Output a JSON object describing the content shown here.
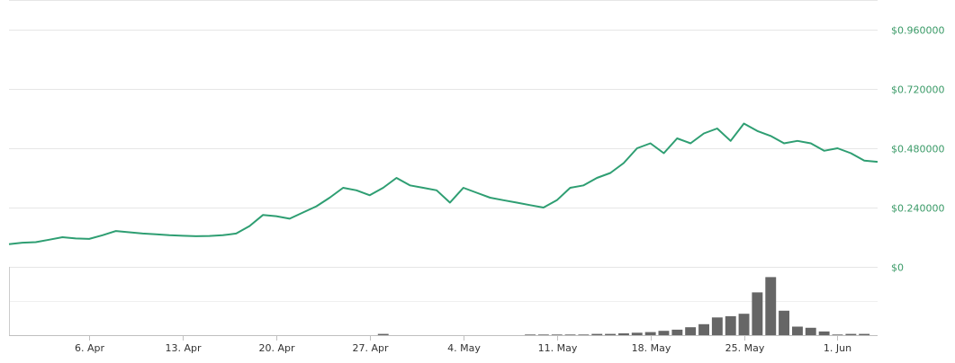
{
  "colors": {
    "price_line": "#2e9e72",
    "volume_bar": "#666666",
    "grid": "#e6e6e6",
    "axis_label": "#3a9a67",
    "date_label": "#333333"
  },
  "chart_data": [
    {
      "type": "line",
      "title": "",
      "xlabel": "",
      "ylabel": "",
      "xlim": [
        "2020-03-31",
        "2020-06-04"
      ],
      "ylim": [
        0,
        1.08
      ],
      "yticks": [
        {
          "value": 0,
          "label": "$0"
        },
        {
          "value": 0.24,
          "label": "$0.240000"
        },
        {
          "value": 0.48,
          "label": "$0.480000"
        },
        {
          "value": 0.72,
          "label": "$0.720000"
        },
        {
          "value": 0.96,
          "label": "$0.960000"
        }
      ],
      "xticks": [
        {
          "value": "2020-04-06",
          "label": "6. Apr"
        },
        {
          "value": "2020-04-13",
          "label": "13. Apr"
        },
        {
          "value": "2020-04-20",
          "label": "20. Apr"
        },
        {
          "value": "2020-04-27",
          "label": "27. Apr"
        },
        {
          "value": "2020-05-04",
          "label": "4. May"
        },
        {
          "value": "2020-05-11",
          "label": "11. May"
        },
        {
          "value": "2020-05-18",
          "label": "18. May"
        },
        {
          "value": "2020-05-25",
          "label": "25. May"
        },
        {
          "value": "2020-06-01",
          "label": "1. Jun"
        }
      ],
      "grid": true,
      "series": [
        {
          "x": [
            "2020-03-31",
            "2020-04-01",
            "2020-04-02",
            "2020-04-03",
            "2020-04-04",
            "2020-04-05",
            "2020-04-06",
            "2020-04-07",
            "2020-04-08",
            "2020-04-09",
            "2020-04-10",
            "2020-04-11",
            "2020-04-12",
            "2020-04-13",
            "2020-04-14",
            "2020-04-15",
            "2020-04-16",
            "2020-04-17",
            "2020-04-18",
            "2020-04-19",
            "2020-04-20",
            "2020-04-21",
            "2020-04-22",
            "2020-04-23",
            "2020-04-24",
            "2020-04-25",
            "2020-04-26",
            "2020-04-27",
            "2020-04-28",
            "2020-04-29",
            "2020-04-30",
            "2020-05-01",
            "2020-05-02",
            "2020-05-03",
            "2020-05-04",
            "2020-05-05",
            "2020-05-06",
            "2020-05-07",
            "2020-05-08",
            "2020-05-09",
            "2020-05-10",
            "2020-05-11",
            "2020-05-12",
            "2020-05-13",
            "2020-05-14",
            "2020-05-15",
            "2020-05-16",
            "2020-05-17",
            "2020-05-18",
            "2020-05-19",
            "2020-05-20",
            "2020-05-21",
            "2020-05-22",
            "2020-05-23",
            "2020-05-24",
            "2020-05-25",
            "2020-05-26",
            "2020-05-27",
            "2020-05-28",
            "2020-05-29",
            "2020-05-30",
            "2020-05-31",
            "2020-06-01",
            "2020-06-02",
            "2020-06-03",
            "2020-06-04"
          ],
          "y": [
            0.092,
            0.098,
            0.1,
            0.11,
            0.12,
            0.115,
            0.113,
            0.128,
            0.145,
            0.14,
            0.135,
            0.132,
            0.128,
            0.126,
            0.124,
            0.125,
            0.128,
            0.135,
            0.165,
            0.21,
            0.205,
            0.195,
            0.22,
            0.245,
            0.28,
            0.32,
            0.31,
            0.29,
            0.32,
            0.36,
            0.33,
            0.32,
            0.31,
            0.26,
            0.32,
            0.3,
            0.28,
            0.27,
            0.26,
            0.25,
            0.24,
            0.27,
            0.32,
            0.33,
            0.36,
            0.38,
            0.42,
            0.48,
            0.5,
            0.46,
            0.52,
            0.5,
            0.54,
            0.56,
            0.51,
            0.58,
            0.55,
            0.53,
            0.5,
            0.51,
            0.5,
            0.47,
            0.48,
            0.46,
            0.43,
            0.425
          ]
        }
      ]
    },
    {
      "type": "bar",
      "title": "",
      "xlabel": "",
      "ylabel": "",
      "ylim": [
        0,
        1
      ],
      "note_units": "relative volume (0-1)",
      "x": [
        "2020-04-28",
        "2020-05-09",
        "2020-05-10",
        "2020-05-11",
        "2020-05-12",
        "2020-05-13",
        "2020-05-14",
        "2020-05-15",
        "2020-05-16",
        "2020-05-17",
        "2020-05-18",
        "2020-05-19",
        "2020-05-20",
        "2020-05-21",
        "2020-05-22",
        "2020-05-23",
        "2020-05-24",
        "2020-05-25",
        "2020-05-26",
        "2020-05-27",
        "2020-05-28",
        "2020-05-29",
        "2020-05-30",
        "2020-05-31",
        "2020-06-01",
        "2020-06-02",
        "2020-06-03"
      ],
      "values": [
        0.02,
        0.01,
        0.01,
        0.01,
        0.01,
        0.01,
        0.02,
        0.02,
        0.03,
        0.04,
        0.05,
        0.07,
        0.09,
        0.13,
        0.18,
        0.29,
        0.31,
        0.35,
        0.7,
        0.95,
        0.4,
        0.14,
        0.12,
        0.06,
        0.01,
        0.02,
        0.02
      ]
    }
  ]
}
